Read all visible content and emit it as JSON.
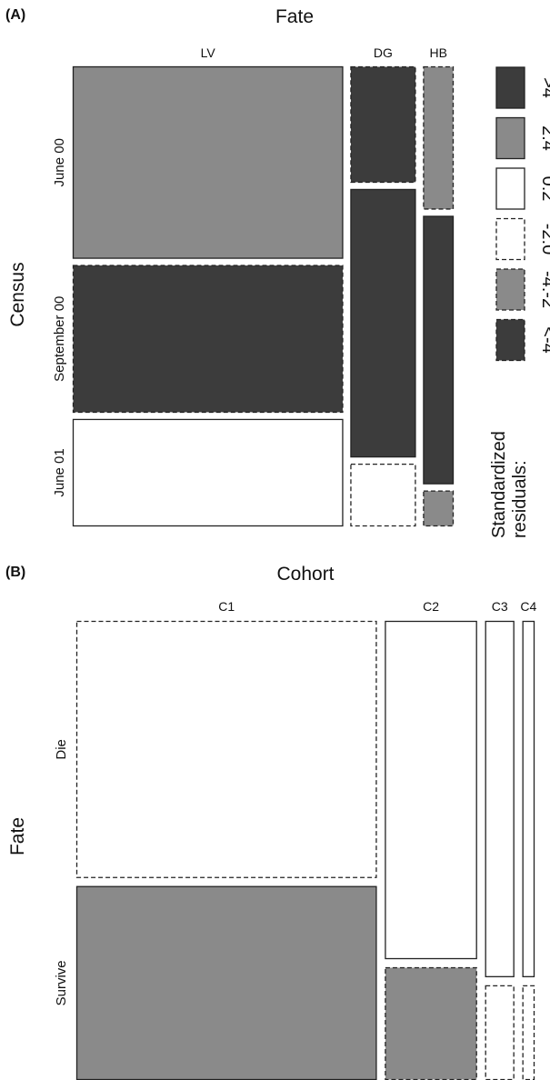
{
  "colors": {
    "gt4": "#3c3c3c",
    "r2to4": "#8a8a8a",
    "r0to2": "#ffffff",
    "rm2to0": "#ffffff",
    "rm4tom2": "#8a8a8a",
    "ltm4": "#3c3c3c",
    "stroke": "#222222"
  },
  "panelA": {
    "tag": "(A)",
    "x_title": "Fate",
    "y_title": "Census",
    "legend_title": "Standardized residuals:",
    "legend": [
      {
        "label": ">4",
        "fill": "gt4",
        "dashed": false
      },
      {
        "label": "2:4",
        "fill": "r2to4",
        "dashed": false
      },
      {
        "label": "0:2",
        "fill": "r0to2",
        "dashed": false
      },
      {
        "label": "-2:0",
        "fill": "rm2to0",
        "dashed": true
      },
      {
        "label": "-4:-2",
        "fill": "rm4tom2",
        "dashed": true
      },
      {
        "label": "<-4",
        "fill": "ltm4",
        "dashed": true
      }
    ]
  },
  "panelB": {
    "tag": "(B)",
    "x_title": "Cohort",
    "y_title": "Fate"
  },
  "chart_data": [
    {
      "type": "mosaic",
      "panel": "A",
      "x_variable": "Fate",
      "y_variable": "Census",
      "columns": [
        "LV",
        "DG",
        "HB"
      ],
      "rows": [
        "June 00",
        "September 00",
        "June 01"
      ],
      "column_proportions": [
        0.62,
        0.15,
        0.07
      ],
      "cell_proportions_within_column": [
        [
          0.43,
          0.33,
          0.24
        ],
        [
          0.26,
          0.6,
          0.14
        ],
        [
          0.32,
          0.6,
          0.08
        ]
      ],
      "residual_classes": [
        [
          "2:4",
          "<-4",
          "0:2"
        ],
        [
          "<-4",
          ">4",
          "-2:0"
        ],
        [
          "-4:-2",
          ">4",
          "-4:-2"
        ]
      ]
    },
    {
      "type": "mosaic",
      "panel": "B",
      "x_variable": "Cohort",
      "y_variable": "Fate",
      "columns": [
        "C1",
        "C2",
        "C3",
        "C4"
      ],
      "rows": [
        "Die",
        "Survive"
      ],
      "column_proportions": [
        0.62,
        0.19,
        0.06,
        0.025
      ],
      "cell_proportions_within_column": [
        [
          0.57,
          0.43
        ],
        [
          0.75,
          0.25
        ],
        [
          0.79,
          0.21
        ],
        [
          0.79,
          0.21
        ]
      ],
      "residual_classes": [
        [
          "-2:0",
          "2:4"
        ],
        [
          "0:2",
          "-4:-2"
        ],
        [
          "0:2",
          "-2:0"
        ],
        [
          "0:2",
          "-2:0"
        ]
      ]
    }
  ]
}
